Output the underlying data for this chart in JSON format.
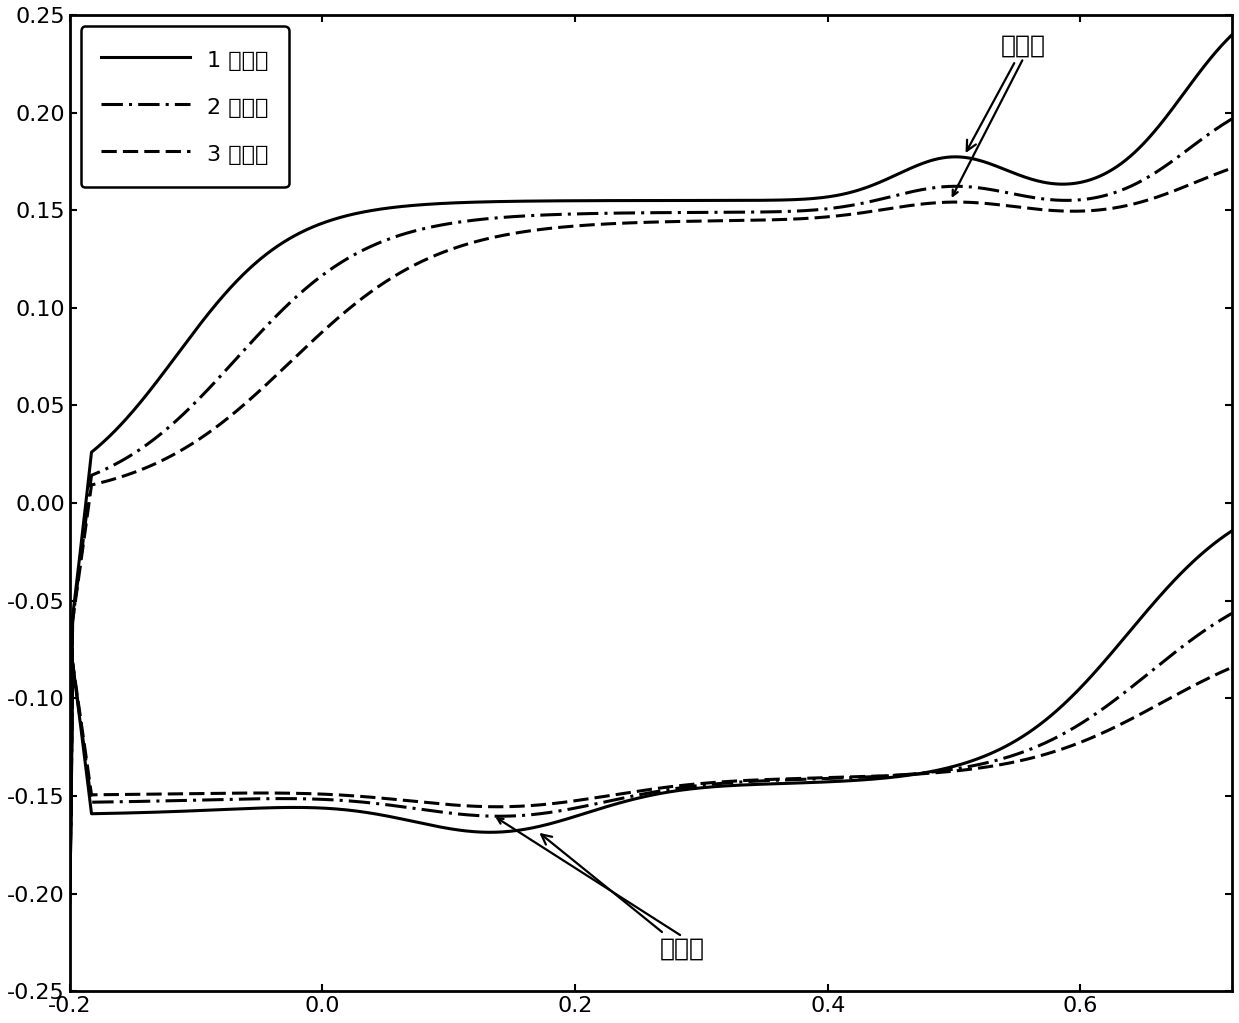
{
  "xlim": [
    -0.2,
    0.72
  ],
  "ylim": [
    -0.25,
    0.25
  ],
  "xticks": [
    -0.2,
    0.0,
    0.2,
    0.4,
    0.6
  ],
  "yticks": [
    -0.25,
    -0.2,
    -0.15,
    -0.1,
    -0.05,
    0.0,
    0.05,
    0.1,
    0.15,
    0.2,
    0.25
  ],
  "legend_labels": [
    "1 次循环",
    "2 次循环",
    "3 次循环"
  ],
  "annotation_reduction": "还原峰",
  "annotation_oxidation": "氧化峰",
  "line_color": "#000000",
  "linewidth": 2.2,
  "fontsize_tick": 16,
  "fontsize_legend": 16,
  "fontsize_annotation": 18
}
